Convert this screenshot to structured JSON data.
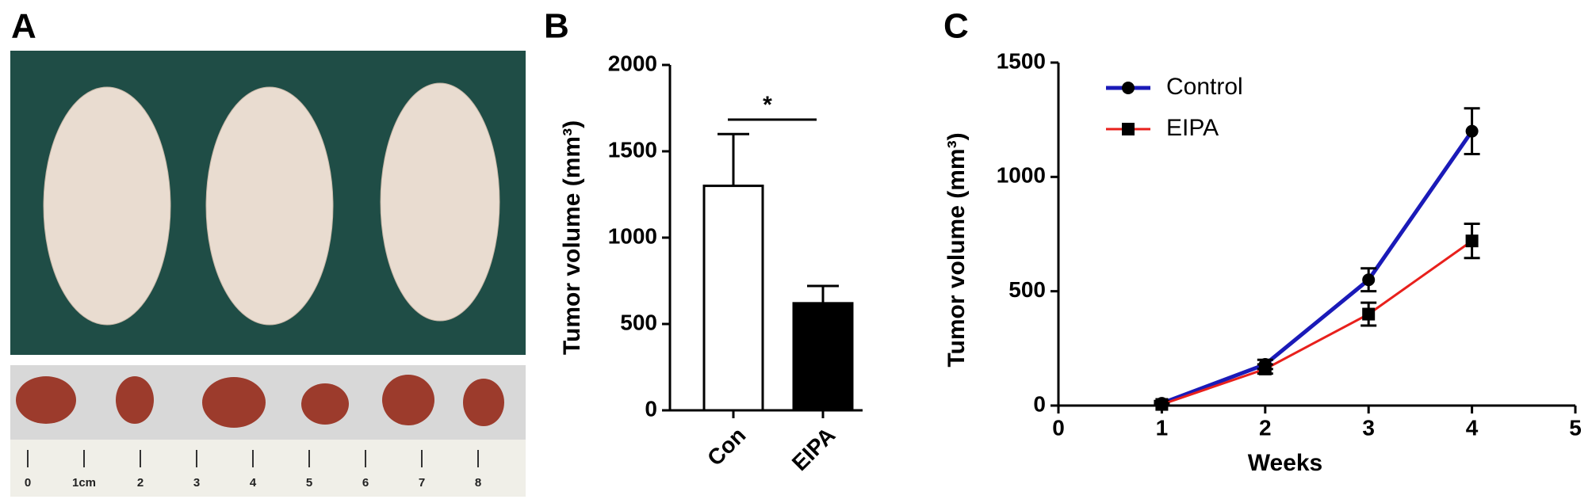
{
  "panel_labels": [
    "A",
    "B",
    "C"
  ],
  "photo": {
    "ruler_labels": [
      "0",
      "1cm",
      "2",
      "3",
      "4",
      "5",
      "6",
      "7",
      "8"
    ]
  },
  "chart_data": [
    {
      "type": "bar",
      "ylabel": "Tumor volume (mm³)",
      "categories": [
        "Con",
        "EIPA"
      ],
      "values": [
        1300,
        620
      ],
      "errors": [
        300,
        100
      ],
      "colors": [
        "#ffffff",
        "#000000"
      ],
      "ylim": [
        0,
        2000
      ],
      "yticks": [
        0,
        500,
        1000,
        1500,
        2000
      ],
      "annotation": "*"
    },
    {
      "type": "line",
      "xlabel": "Weeks",
      "ylabel": "Tumor volume (mm³)",
      "x": [
        1,
        2,
        3,
        4
      ],
      "series": [
        {
          "name": "Control",
          "color": "#1a1ab8",
          "marker": "circle",
          "values": [
            10,
            180,
            550,
            1200
          ],
          "errors": [
            10,
            20,
            50,
            100
          ]
        },
        {
          "name": "EIPA",
          "color": "#e8201c",
          "marker": "square",
          "values": [
            5,
            160,
            400,
            720
          ],
          "errors": [
            5,
            20,
            50,
            75
          ]
        }
      ],
      "xlim": [
        0,
        5
      ],
      "xticks": [
        0,
        1,
        2,
        3,
        4,
        5
      ],
      "ylim": [
        0,
        1500
      ],
      "yticks": [
        0,
        500,
        1000,
        1500
      ],
      "legend": "upper-left"
    }
  ]
}
